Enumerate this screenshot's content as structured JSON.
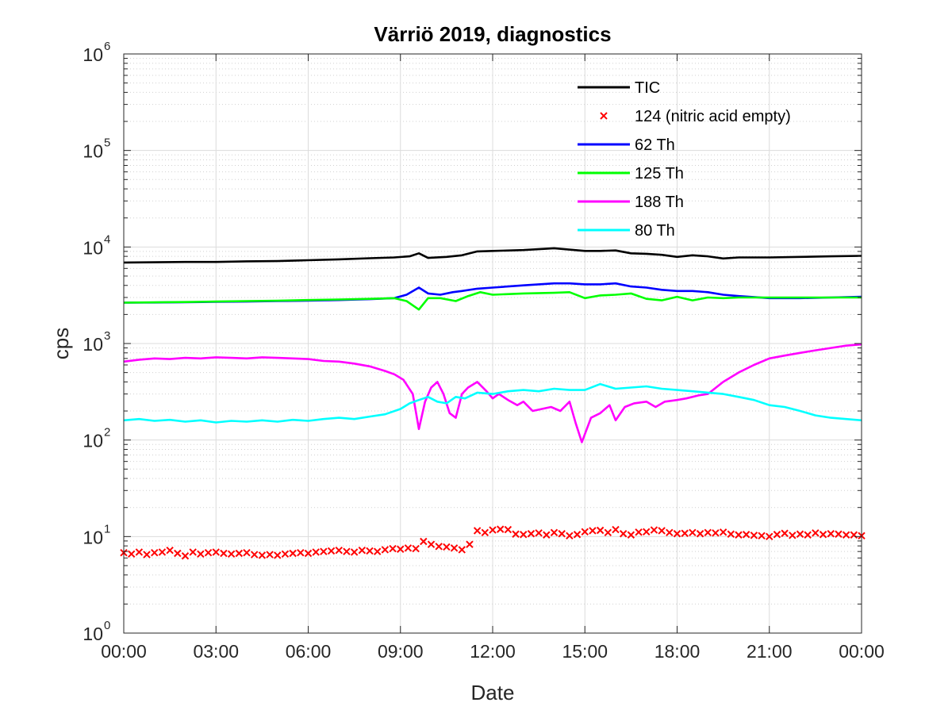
{
  "chart_data": {
    "type": "line",
    "title": "Värriö 2019, diagnostics",
    "xlabel": "Date",
    "ylabel": "cps",
    "y_scale": "log",
    "ylim": [
      1,
      1000000
    ],
    "y_ticks": [
      {
        "value": 1,
        "base": "10",
        "exp": "0"
      },
      {
        "value": 10,
        "base": "10",
        "exp": "1"
      },
      {
        "value": 100,
        "base": "10",
        "exp": "2"
      },
      {
        "value": 1000,
        "base": "10",
        "exp": "3"
      },
      {
        "value": 10000,
        "base": "10",
        "exp": "4"
      },
      {
        "value": 100000,
        "base": "10",
        "exp": "5"
      },
      {
        "value": 1000000,
        "base": "10",
        "exp": "6"
      }
    ],
    "xlim": [
      0,
      24
    ],
    "x_ticks": [
      {
        "hour": 0,
        "label": "00:00"
      },
      {
        "hour": 3,
        "label": "03:00"
      },
      {
        "hour": 6,
        "label": "06:00"
      },
      {
        "hour": 9,
        "label": "09:00"
      },
      {
        "hour": 12,
        "label": "12:00"
      },
      {
        "hour": 15,
        "label": "15:00"
      },
      {
        "hour": 18,
        "label": "18:00"
      },
      {
        "hour": 21,
        "label": "21:00"
      },
      {
        "hour": 24,
        "label": "00:00"
      }
    ],
    "grid": true,
    "minor_grid": true,
    "legend_position": "top-right",
    "series": [
      {
        "name": "TIC",
        "color": "#000000",
        "style": "line",
        "x": [
          0,
          1,
          2,
          3,
          4,
          5,
          6,
          7,
          8,
          8.8,
          9.3,
          9.6,
          9.9,
          10.5,
          11,
          11.5,
          12,
          13,
          14,
          15,
          15.5,
          16,
          16.5,
          17,
          17.5,
          18,
          18.5,
          19,
          19.5,
          20,
          21,
          22,
          23,
          24
        ],
        "y": [
          6900,
          6950,
          7000,
          7000,
          7100,
          7150,
          7300,
          7450,
          7650,
          7800,
          8000,
          8600,
          7700,
          7900,
          8200,
          9000,
          9100,
          9300,
          9700,
          9100,
          9100,
          9200,
          8600,
          8500,
          8300,
          7900,
          8200,
          8000,
          7600,
          7800,
          7800,
          7900,
          8000,
          8100
        ]
      },
      {
        "name": "124 (nitric acid empty)",
        "color": "#ff0000",
        "style": "marker-x",
        "x": [
          0,
          0.25,
          0.5,
          0.75,
          1,
          1.25,
          1.5,
          1.75,
          2,
          2.25,
          2.5,
          2.75,
          3,
          3.25,
          3.5,
          3.75,
          4,
          4.25,
          4.5,
          4.75,
          5,
          5.25,
          5.5,
          5.75,
          6,
          6.25,
          6.5,
          6.75,
          7,
          7.25,
          7.5,
          7.75,
          8,
          8.25,
          8.5,
          8.75,
          9,
          9.25,
          9.5,
          9.75,
          10,
          10.25,
          10.5,
          10.75,
          11,
          11.25,
          11.5,
          11.75,
          12,
          12.25,
          12.5,
          12.75,
          13,
          13.25,
          13.5,
          13.75,
          14,
          14.25,
          14.5,
          14.75,
          15,
          15.25,
          15.5,
          15.75,
          16,
          16.25,
          16.5,
          16.75,
          17,
          17.25,
          17.5,
          17.75,
          18,
          18.25,
          18.5,
          18.75,
          19,
          19.25,
          19.5,
          19.75,
          20,
          20.25,
          20.5,
          20.75,
          21,
          21.25,
          21.5,
          21.75,
          22,
          22.25,
          22.5,
          22.75,
          23,
          23.25,
          23.5,
          23.75,
          24
        ],
        "y": [
          6.8,
          6.6,
          6.9,
          6.5,
          6.8,
          6.9,
          7.2,
          6.7,
          6.3,
          6.9,
          6.6,
          6.8,
          6.9,
          6.7,
          6.6,
          6.7,
          6.8,
          6.5,
          6.4,
          6.5,
          6.4,
          6.6,
          6.7,
          6.8,
          6.7,
          6.9,
          7.0,
          7.1,
          7.2,
          7.0,
          6.9,
          7.2,
          7.1,
          7.0,
          7.3,
          7.5,
          7.4,
          7.6,
          7.5,
          8.9,
          8.3,
          7.9,
          7.8,
          7.6,
          7.3,
          8.3,
          11.5,
          11.0,
          11.7,
          11.9,
          11.8,
          10.6,
          10.5,
          10.7,
          10.9,
          10.4,
          11.0,
          10.7,
          10.2,
          10.5,
          11.2,
          11.5,
          11.6,
          11.0,
          11.8,
          10.7,
          10.4,
          11.1,
          11.2,
          11.7,
          11.5,
          11.0,
          10.7,
          10.8,
          11.0,
          10.7,
          11.0,
          10.9,
          11.1,
          10.6,
          10.4,
          10.5,
          10.3,
          10.2,
          10.0,
          10.5,
          10.8,
          10.3,
          10.6,
          10.4,
          10.9,
          10.5,
          10.7,
          10.6,
          10.4,
          10.4,
          10.2
        ]
      },
      {
        "name": "62 Th",
        "color": "#0000ff",
        "style": "line",
        "x": [
          0,
          1,
          2,
          3,
          4,
          5,
          6,
          7,
          8,
          8.8,
          9.2,
          9.6,
          9.9,
          10.3,
          10.7,
          11,
          11.5,
          12,
          12.5,
          13,
          13.5,
          14,
          14.5,
          15,
          15.5,
          16,
          16.5,
          17,
          17.5,
          18,
          18.5,
          19,
          19.5,
          20,
          21,
          22,
          23,
          24
        ],
        "y": [
          2650,
          2660,
          2680,
          2700,
          2720,
          2750,
          2780,
          2820,
          2880,
          2950,
          3200,
          3800,
          3300,
          3200,
          3400,
          3500,
          3700,
          3800,
          3900,
          4000,
          4100,
          4200,
          4200,
          4100,
          4100,
          4200,
          3900,
          3800,
          3600,
          3500,
          3500,
          3400,
          3200,
          3100,
          2950,
          2950,
          3000,
          3050
        ]
      },
      {
        "name": "125 Th",
        "color": "#00ff00",
        "style": "line",
        "x": [
          0,
          1,
          2,
          3,
          4,
          5,
          6,
          7,
          8,
          8.8,
          9.2,
          9.6,
          9.9,
          10.3,
          10.8,
          11.2,
          11.6,
          12,
          13,
          14,
          14.5,
          15,
          15.5,
          16,
          16.5,
          17,
          17.5,
          18,
          18.5,
          19,
          19.5,
          20,
          21,
          22,
          23,
          24
        ],
        "y": [
          2650,
          2670,
          2690,
          2720,
          2750,
          2780,
          2820,
          2860,
          2900,
          2950,
          2750,
          2250,
          2950,
          2950,
          2750,
          3100,
          3400,
          3200,
          3300,
          3350,
          3400,
          2950,
          3150,
          3200,
          3300,
          2900,
          2800,
          3050,
          2800,
          3000,
          2950,
          3000,
          3000,
          3000,
          3000,
          3000
        ]
      },
      {
        "name": "188 Th",
        "color": "#ff00ff",
        "style": "line",
        "x": [
          0,
          0.5,
          1,
          1.5,
          2,
          2.5,
          3,
          3.5,
          4,
          4.5,
          5,
          5.5,
          6,
          6.5,
          7,
          7.5,
          8,
          8.5,
          8.8,
          9.1,
          9.4,
          9.6,
          9.8,
          10,
          10.2,
          10.4,
          10.6,
          10.8,
          11,
          11.2,
          11.5,
          11.8,
          12,
          12.2,
          12.5,
          12.8,
          13,
          13.3,
          13.6,
          13.9,
          14.2,
          14.5,
          14.7,
          14.9,
          15.2,
          15.5,
          15.8,
          16,
          16.3,
          16.6,
          17,
          17.3,
          17.6,
          18,
          18.3,
          18.7,
          19,
          19.5,
          20,
          20.5,
          21,
          21.5,
          22,
          22.5,
          23,
          23.5,
          24
        ],
        "y": [
          650,
          680,
          700,
          690,
          710,
          700,
          720,
          710,
          700,
          720,
          710,
          700,
          690,
          660,
          650,
          620,
          580,
          520,
          480,
          420,
          300,
          130,
          250,
          350,
          400,
          300,
          190,
          170,
          300,
          350,
          400,
          320,
          270,
          300,
          260,
          230,
          250,
          200,
          210,
          220,
          200,
          250,
          150,
          95,
          170,
          190,
          230,
          160,
          220,
          240,
          250,
          220,
          250,
          260,
          270,
          290,
          300,
          400,
          500,
          600,
          700,
          750,
          800,
          850,
          900,
          950,
          980
        ]
      },
      {
        "name": "80 Th",
        "color": "#00ffff",
        "style": "line",
        "x": [
          0,
          0.5,
          1,
          1.5,
          2,
          2.5,
          3,
          3.5,
          4,
          4.5,
          5,
          5.5,
          6,
          6.5,
          7,
          7.5,
          8,
          8.5,
          9,
          9.3,
          9.6,
          9.9,
          10.2,
          10.5,
          10.8,
          11.1,
          11.5,
          12,
          12.5,
          13,
          13.5,
          14,
          14.5,
          15,
          15.5,
          16,
          16.5,
          17,
          17.5,
          18,
          18.5,
          19,
          19.5,
          20,
          20.5,
          21,
          21.5,
          22,
          22.5,
          23,
          23.5,
          24
        ],
        "y": [
          160,
          165,
          158,
          162,
          155,
          160,
          152,
          158,
          155,
          160,
          155,
          162,
          158,
          165,
          170,
          165,
          175,
          185,
          210,
          240,
          260,
          280,
          250,
          240,
          280,
          270,
          310,
          300,
          320,
          330,
          320,
          340,
          330,
          330,
          380,
          340,
          350,
          360,
          340,
          330,
          320,
          310,
          300,
          280,
          260,
          230,
          220,
          200,
          180,
          170,
          165,
          160
        ]
      }
    ]
  }
}
